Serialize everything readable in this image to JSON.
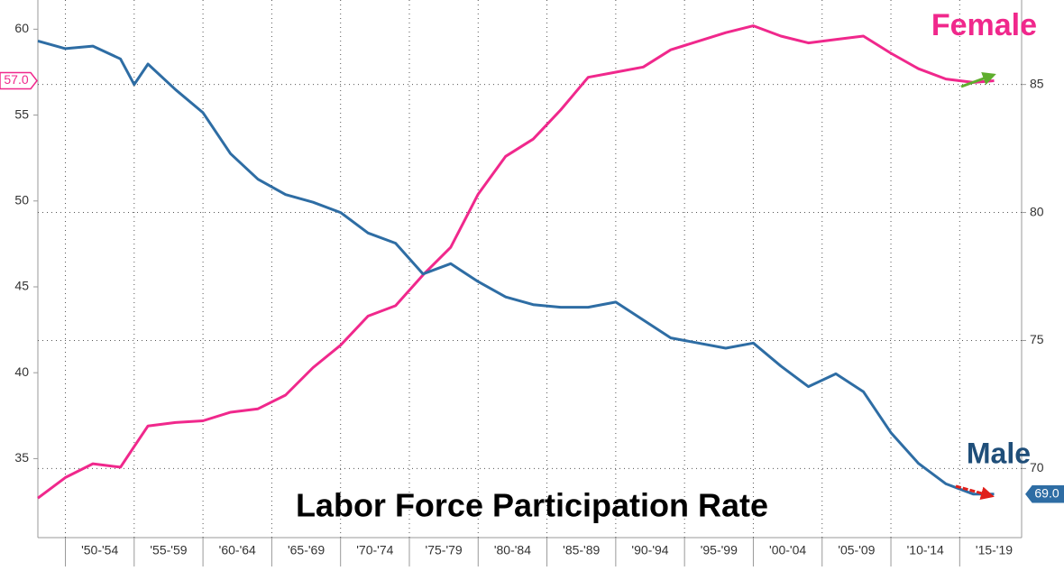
{
  "chart_data": {
    "type": "line",
    "title": "Labor Force Participation Rate",
    "xlim": [
      1948,
      2019.5
    ],
    "xticks": [
      1950,
      1955,
      1960,
      1965,
      1970,
      1975,
      1980,
      1985,
      1990,
      1995,
      2000,
      2005,
      2010,
      2015
    ],
    "x_period_labels": [
      "'50-'54",
      "'55-'59",
      "'60-'64",
      "'65-'69",
      "'70-'74",
      "'75-'79",
      "'80-'84",
      "'85-'89",
      "'90-'94",
      "'95-'99",
      "'00-'04",
      "'05-'09",
      "'10-'14",
      "'15-'19"
    ],
    "ylim": [
      30.4,
      61.7
    ],
    "yticks": [
      35,
      40,
      45,
      50,
      55,
      60
    ],
    "y2lim": [
      67.3,
      88.3
    ],
    "y2ticks": [
      70,
      75,
      80,
      85
    ],
    "grid": true,
    "x": [
      1948,
      1950,
      1952,
      1954,
      1955,
      1956,
      1958,
      1960,
      1962,
      1964,
      1966,
      1968,
      1970,
      1972,
      1974,
      1976,
      1978,
      1980,
      1982,
      1984,
      1986,
      1988,
      1990,
      1992,
      1994,
      1996,
      1998,
      2000,
      2002,
      2004,
      2006,
      2008,
      2010,
      2012,
      2014,
      2016,
      2017.5
    ],
    "series": [
      {
        "name": "Female",
        "color": "#f0288c",
        "axis": "y",
        "values": [
          32.7,
          33.9,
          34.7,
          34.5,
          35.7,
          36.9,
          37.1,
          37.2,
          37.7,
          37.9,
          38.7,
          40.3,
          41.6,
          43.3,
          43.9,
          45.7,
          47.3,
          50.4,
          52.6,
          53.6,
          55.3,
          57.2,
          57.5,
          57.8,
          58.8,
          59.3,
          59.8,
          60.2,
          59.6,
          59.2,
          59.4,
          59.6,
          58.6,
          57.7,
          57.1,
          56.9,
          57.0
        ],
        "badge": {
          "value": 57.0,
          "label": "57.0"
        }
      },
      {
        "name": "Male",
        "color": "#2e6da4",
        "axis": "y2",
        "values": [
          86.7,
          86.4,
          86.5,
          86.0,
          85.0,
          85.8,
          84.8,
          83.9,
          82.3,
          81.3,
          80.7,
          80.4,
          80.0,
          79.2,
          78.8,
          77.6,
          78.0,
          77.3,
          76.7,
          76.4,
          76.3,
          76.3,
          76.5,
          75.8,
          75.1,
          74.9,
          74.7,
          74.9,
          74.0,
          73.2,
          73.7,
          73.0,
          71.4,
          70.2,
          69.4,
          69.0,
          69.0
        ],
        "badge": {
          "value": 69.0,
          "label": "69.0"
        }
      }
    ]
  }
}
